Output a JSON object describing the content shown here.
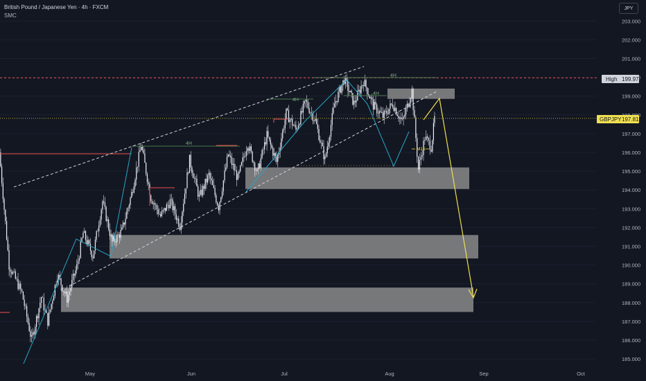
{
  "header": {
    "title": "British Pound / Japanese Yen · 4h · FXCM",
    "indicator": "SMC",
    "currency_button": "JPY"
  },
  "price_tags": {
    "high_label": "High",
    "high_value": "199.970",
    "symbol_label": "GBPJPY",
    "last_value": "197.812"
  },
  "annotations": {
    "structure_label": "4H",
    "m15_label": "M15"
  },
  "colors": {
    "background": "#131722",
    "zone": "#8a8a8a",
    "projection": "#f0e050",
    "support_line": "#f05050",
    "bullish_label": "#7ea77e",
    "trend_line": "#26a6c8",
    "high_tag": "#d1d4dc",
    "last_tag": "#f0e050"
  },
  "chart_data": {
    "type": "candlestick",
    "symbol": "GBPJPY",
    "timeframe": "4h",
    "ylim": [
      184.75,
      203.7
    ],
    "y_ticks": [
      "203.000",
      "202.000",
      "201.000",
      "200.000",
      "199.000",
      "198.000",
      "197.000",
      "196.000",
      "195.000",
      "194.000",
      "193.000",
      "192.000",
      "191.000",
      "190.000",
      "189.000",
      "188.000",
      "187.000",
      "186.000",
      "185.000"
    ],
    "x_ticks": [
      "May",
      "Jun",
      "Jul",
      "Aug",
      "Sep",
      "Oct"
    ],
    "high": 199.97,
    "last": 197.812,
    "path_points": [
      {
        "d": 0,
        "p": 196.0
      },
      {
        "d": 3,
        "p": 190.0
      },
      {
        "d": 7,
        "p": 188.5
      },
      {
        "d": 10,
        "p": 186.0
      },
      {
        "d": 13,
        "p": 188.3
      },
      {
        "d": 15,
        "p": 187.0
      },
      {
        "d": 18,
        "p": 189.5
      },
      {
        "d": 21,
        "p": 188.2
      },
      {
        "d": 24,
        "p": 189.9
      },
      {
        "d": 26,
        "p": 191.7
      },
      {
        "d": 29,
        "p": 190.5
      },
      {
        "d": 32,
        "p": 193.4
      },
      {
        "d": 35,
        "p": 191.2
      },
      {
        "d": 38,
        "p": 191.8
      },
      {
        "d": 41,
        "p": 193.8
      },
      {
        "d": 44,
        "p": 196.4
      },
      {
        "d": 47,
        "p": 193.6
      },
      {
        "d": 50,
        "p": 192.6
      },
      {
        "d": 53,
        "p": 193.4
      },
      {
        "d": 56,
        "p": 192.1
      },
      {
        "d": 59,
        "p": 195.6
      },
      {
        "d": 62,
        "p": 193.6
      },
      {
        "d": 65,
        "p": 194.8
      },
      {
        "d": 68,
        "p": 193.1
      },
      {
        "d": 71,
        "p": 195.9
      },
      {
        "d": 74,
        "p": 194.6
      },
      {
        "d": 77,
        "p": 196.5
      },
      {
        "d": 80,
        "p": 194.9
      },
      {
        "d": 83,
        "p": 196.9
      },
      {
        "d": 86,
        "p": 195.5
      },
      {
        "d": 89,
        "p": 198.1
      },
      {
        "d": 92,
        "p": 197.2
      },
      {
        "d": 95,
        "p": 198.7
      },
      {
        "d": 98,
        "p": 197.7
      },
      {
        "d": 101,
        "p": 195.6
      },
      {
        "d": 104,
        "p": 198.6
      },
      {
        "d": 107,
        "p": 199.9
      },
      {
        "d": 110,
        "p": 198.6
      },
      {
        "d": 113,
        "p": 199.8
      },
      {
        "d": 116,
        "p": 198.5
      },
      {
        "d": 119,
        "p": 197.9
      },
      {
        "d": 122,
        "p": 198.6
      },
      {
        "d": 125,
        "p": 197.6
      },
      {
        "d": 128,
        "p": 199.3
      },
      {
        "d": 130,
        "p": 195.1
      },
      {
        "d": 132,
        "p": 196.8
      },
      {
        "d": 134,
        "p": 196.3
      },
      {
        "d": 135,
        "p": 197.8
      }
    ],
    "zones": [
      {
        "from": [
          199.4,
          198.85
        ],
        "x_days": [
          131,
          145
        ]
      },
      {
        "from": [
          195.2,
          194.05
        ],
        "x_days": [
          82,
          153
        ]
      },
      {
        "from": [
          191.6,
          190.35
        ],
        "x_days": [
          37,
          156
        ]
      },
      {
        "from": [
          188.8,
          187.5
        ],
        "x_days": [
          20,
          154
        ]
      }
    ],
    "channel": {
      "upper": [
        [
          5,
          194.8
        ],
        [
          122,
          200.5
        ]
      ],
      "lower": [
        [
          27,
          189.0
        ],
        [
          142,
          199.1
        ]
      ]
    },
    "projection": [
      [
        138,
        197.8
      ],
      [
        143,
        198.9
      ],
      [
        154,
        188.5
      ]
    ],
    "start_date": "2024-04-01"
  }
}
